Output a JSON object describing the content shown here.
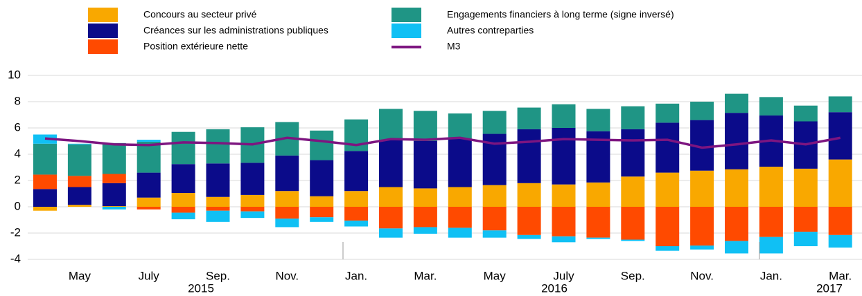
{
  "chart_data": {
    "type": "stacked_bar_line",
    "categories": [
      null,
      "May",
      null,
      "July",
      null,
      "Sep.",
      null,
      "Nov.",
      null,
      "Jan.",
      null,
      "Mar.",
      null,
      "May",
      null,
      "July",
      null,
      "Sep.",
      null,
      "Nov.",
      null,
      "Jan.",
      null,
      "Mar."
    ],
    "years": [
      "2015",
      "2016",
      "2017"
    ],
    "ylim": [
      -4,
      10
    ],
    "yticks": [
      -4,
      -2,
      0,
      2,
      4,
      6,
      8,
      10
    ],
    "grid": true,
    "series": [
      {
        "name": "Concours au secteur privé",
        "color": "#f9a800",
        "kind": "bar",
        "values": [
          -0.3,
          0.15,
          0.05,
          0.7,
          1.05,
          0.75,
          0.9,
          1.2,
          0.8,
          1.2,
          1.5,
          1.4,
          1.5,
          1.65,
          1.8,
          1.7,
          1.85,
          2.3,
          2.6,
          2.75,
          2.85,
          3.05,
          2.9,
          3.6
        ]
      },
      {
        "name": "Créances sur les administrations publiques",
        "color": "#0b0b8a",
        "kind": "bar",
        "values": [
          1.35,
          1.35,
          1.75,
          1.9,
          2.2,
          2.55,
          2.45,
          2.7,
          2.75,
          3.05,
          3.6,
          3.6,
          3.7,
          3.9,
          4.1,
          4.3,
          3.9,
          3.6,
          3.8,
          3.85,
          4.3,
          3.9,
          3.6,
          3.6
        ]
      },
      {
        "name": "Position extérieure nette",
        "color": "#ff4a00",
        "kind": "bar",
        "values": [
          1.1,
          0.85,
          0.7,
          -0.2,
          -0.45,
          -0.3,
          -0.35,
          -0.9,
          -0.8,
          -1.05,
          -1.65,
          -1.55,
          -1.6,
          -1.8,
          -2.15,
          -2.25,
          -2.35,
          -2.5,
          -3.0,
          -2.95,
          -2.6,
          -2.3,
          -1.9,
          -2.15
        ]
      },
      {
        "name": "Engagements financiers à long terme (signe inversé)",
        "color": "#1f9585",
        "kind": "bar",
        "values": [
          2.35,
          2.4,
          2.35,
          2.35,
          2.45,
          2.6,
          2.7,
          2.55,
          2.25,
          2.4,
          2.35,
          2.3,
          1.9,
          1.75,
          1.65,
          1.8,
          1.7,
          1.75,
          1.45,
          1.4,
          1.45,
          1.4,
          1.2,
          1.2
        ]
      },
      {
        "name": "Autres contreparties",
        "color": "#10c0f4",
        "kind": "bar",
        "values": [
          0.7,
          0.05,
          -0.2,
          0.15,
          -0.5,
          -0.85,
          -0.5,
          -0.65,
          -0.35,
          -0.45,
          -0.7,
          -0.5,
          -0.75,
          -0.55,
          -0.3,
          -0.45,
          -0.1,
          -0.1,
          -0.35,
          -0.3,
          -0.95,
          -1.25,
          -1.1,
          -0.95
        ]
      },
      {
        "name": "M3",
        "color": "#7d1580",
        "kind": "line",
        "values": [
          5.2,
          5.0,
          4.75,
          4.7,
          4.9,
          4.85,
          4.75,
          5.25,
          5.0,
          4.7,
          5.15,
          5.1,
          5.25,
          4.8,
          4.95,
          5.15,
          5.1,
          5.05,
          5.1,
          4.5,
          4.75,
          5.05,
          4.75,
          5.25
        ]
      }
    ]
  }
}
